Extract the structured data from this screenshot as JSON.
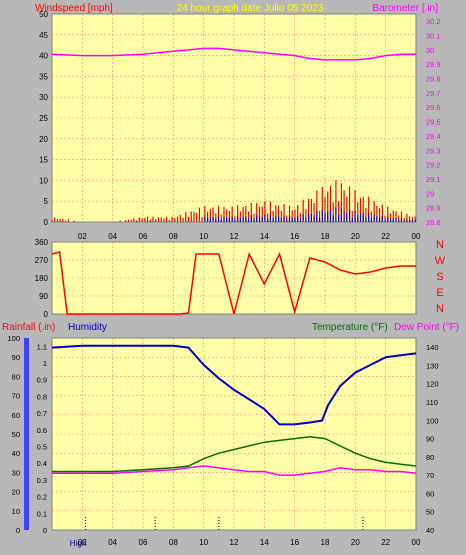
{
  "header": {
    "left_title": "Windspeed [mph]",
    "center_title": "24 hour graph  date   Julio 05 2023",
    "right_title": "Barometer [.in]"
  },
  "top_panel": {
    "wind_ticks": [
      "0",
      "5",
      "10",
      "15",
      "20",
      "25",
      "30",
      "35",
      "40",
      "45",
      "50"
    ],
    "baro_ticks": [
      "28.8",
      "28.9",
      "29",
      "29.1",
      "29.2",
      "29.3",
      "29.4",
      "29.5",
      "29.6",
      "29.7",
      "29.8",
      "29.9",
      "30",
      "30.1",
      "30.2"
    ],
    "time_ticks": [
      "02",
      "04",
      "06",
      "08",
      "10",
      "12",
      "14",
      "16",
      "18",
      "20",
      "22",
      "00"
    ]
  },
  "dir_panel": {
    "deg_ticks": [
      "0",
      "90",
      "180",
      "270",
      "360"
    ],
    "compass": [
      "N",
      "W",
      "S",
      "E",
      "N"
    ]
  },
  "bottom_panel": {
    "labels": {
      "rainfall": "Rainfall (.in)",
      "humidity": "Humidity",
      "temperature": "Temperature (°F)",
      "dewpoint": "Dew Point (°F)"
    },
    "humidity_ticks": [
      "0",
      "10",
      "20",
      "30",
      "40",
      "50",
      "60",
      "70",
      "80",
      "90",
      "100"
    ],
    "rain_ticks": [
      "0",
      "0.1",
      "0.2",
      "0.3",
      "0.4",
      "0.5",
      "0.6",
      "0.7",
      "0.8",
      "0.9",
      "1",
      "1.1"
    ],
    "temp_ticks": [
      "40",
      "50",
      "60",
      "70",
      "80",
      "90",
      "100",
      "110",
      "120",
      "130",
      "140"
    ],
    "time_ticks": [
      "10",
      "12",
      "14",
      "16",
      "18",
      "20",
      "22",
      "00"
    ],
    "bottom_left_labels": [
      "High",
      "02",
      "04",
      "06",
      "08"
    ]
  },
  "colors": {
    "plot_bg": "#ffffa8",
    "frame": "#b8b8b8",
    "wind": "#ff0000",
    "barometer": "#ff00ff",
    "humidity": "#0000c8",
    "temperature": "#007000",
    "dewpoint": "#ff00ff",
    "tick_text": "#000000",
    "left_title": "#ff0000",
    "right_title": "#ff00ff",
    "center_title": "#ffff00"
  },
  "chart_data": [
    {
      "type": "line",
      "title": "24 hour graph  date   Julio 05 2023",
      "series": [
        {
          "name": "Barometer [.in]",
          "x": [
            0,
            2,
            4,
            6,
            8,
            9,
            10,
            11,
            12,
            14,
            16,
            17,
            18,
            19,
            20,
            21,
            22,
            23,
            24
          ],
          "values": [
            29.97,
            29.96,
            29.96,
            29.97,
            29.99,
            30.0,
            30.01,
            30.01,
            30.0,
            29.98,
            29.96,
            29.94,
            29.93,
            29.93,
            29.93,
            29.94,
            29.96,
            29.97,
            29.97
          ]
        },
        {
          "name": "Windspeed [mph]",
          "x": [
            0,
            2,
            4,
            6,
            8,
            10,
            12,
            14,
            16,
            18,
            19,
            20,
            22,
            24
          ],
          "values": [
            1,
            0,
            0,
            1,
            1,
            3,
            3,
            4,
            3,
            7,
            8,
            6,
            3,
            1
          ]
        }
      ],
      "xlabel": "",
      "ylabel": "Windspeed [mph]",
      "ylim": [
        0,
        50
      ],
      "y2lim": [
        28.8,
        30.25
      ]
    },
    {
      "type": "line",
      "series": [
        {
          "name": "Direction",
          "x": [
            0,
            0.5,
            1,
            8.5,
            9,
            9.5,
            10,
            11,
            12,
            13,
            14,
            15,
            16,
            17,
            18,
            19,
            20,
            21,
            22,
            23,
            24
          ],
          "values": [
            300,
            310,
            0,
            0,
            5,
            300,
            300,
            300,
            0,
            300,
            150,
            300,
            10,
            280,
            260,
            220,
            200,
            210,
            230,
            240,
            240
          ]
        }
      ],
      "ylim": [
        0,
        360
      ]
    },
    {
      "type": "line",
      "series": [
        {
          "name": "Humidity",
          "x": [
            0,
            2,
            4,
            6,
            8,
            9,
            10,
            11,
            12,
            13,
            14,
            15,
            16,
            17,
            17.8,
            18.2,
            19,
            20,
            21,
            22,
            23,
            24
          ],
          "values": [
            95,
            96,
            96,
            96,
            96,
            95,
            86,
            79,
            73,
            68,
            63,
            55,
            55,
            56,
            57,
            65,
            75,
            82,
            86,
            90,
            91,
            92
          ]
        },
        {
          "name": "Temperature (°F)",
          "x": [
            0,
            2,
            4,
            6,
            8,
            9,
            10,
            11,
            12,
            13,
            14,
            15,
            16,
            17,
            18,
            19,
            20,
            21,
            22,
            23,
            24
          ],
          "values": [
            72,
            72,
            72,
            73,
            74,
            75,
            79,
            82,
            84,
            86,
            88,
            89,
            90,
            91,
            90,
            86,
            82,
            79,
            77,
            76,
            75
          ]
        },
        {
          "name": "Dew Point (°F)",
          "x": [
            0,
            2,
            4,
            6,
            8,
            9,
            10,
            11,
            12,
            13,
            14,
            15,
            16,
            17,
            18,
            19,
            20,
            21,
            22,
            23,
            24
          ],
          "values": [
            71,
            71,
            71,
            72,
            73,
            74,
            75,
            74,
            73,
            72,
            72,
            70,
            70,
            71,
            72,
            74,
            73,
            73,
            72,
            72,
            71
          ]
        }
      ],
      "ylim": [
        0,
        100
      ],
      "y2lim": [
        40,
        145
      ]
    }
  ]
}
